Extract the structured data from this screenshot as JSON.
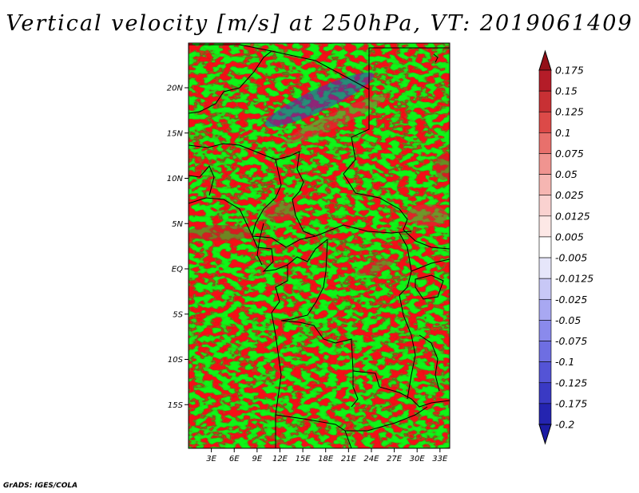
{
  "title": "Vertical velocity [m/s] at 250hPa, VT: 2019061409",
  "credit": "GrADS: IGES/COLA",
  "map": {
    "variable": "Vertical velocity",
    "units": "m/s",
    "level": "250hPa",
    "valid_time": "2019061409",
    "lat_range": [
      -20,
      25
    ],
    "lon_range": [
      0,
      35
    ],
    "y_axis_labels": [
      {
        "label": "20N",
        "lat": 20
      },
      {
        "label": "15N",
        "lat": 15
      },
      {
        "label": "10N",
        "lat": 10
      },
      {
        "label": "5N",
        "lat": 5
      },
      {
        "label": "EQ",
        "lat": 0
      },
      {
        "label": "5S",
        "lat": -5
      },
      {
        "label": "10S",
        "lat": -10
      },
      {
        "label": "15S",
        "lat": -15
      }
    ],
    "x_axis_labels": [
      {
        "label": "3E",
        "lon": 3
      },
      {
        "label": "6E",
        "lon": 6
      },
      {
        "label": "9E",
        "lon": 9
      },
      {
        "label": "12E",
        "lon": 12
      },
      {
        "label": "15E",
        "lon": 15
      },
      {
        "label": "18E",
        "lon": 18
      },
      {
        "label": "21E",
        "lon": 21
      },
      {
        "label": "24E",
        "lon": 24
      },
      {
        "label": "27E",
        "lon": 27
      },
      {
        "label": "30E",
        "lon": 30
      },
      {
        "label": "33E",
        "lon": 33
      }
    ]
  },
  "colorbar": {
    "levels": [
      {
        "label": "0.175",
        "color": "#a01020"
      },
      {
        "label": "0.15",
        "color": "#b41c28"
      },
      {
        "label": "0.125",
        "color": "#c83034"
      },
      {
        "label": "0.1",
        "color": "#dc4a48"
      },
      {
        "label": "0.075",
        "color": "#e8706c"
      },
      {
        "label": "0.05",
        "color": "#f09490"
      },
      {
        "label": "0.025",
        "color": "#f6b6b2"
      },
      {
        "label": "0.0125",
        "color": "#fad2d0"
      },
      {
        "label": "0.005",
        "color": "#fde8e6"
      },
      {
        "label": "-0.005",
        "color": "#ffffff"
      },
      {
        "label": "-0.0125",
        "color": "#e6e6fa"
      },
      {
        "label": "-0.025",
        "color": "#c8c8f6"
      },
      {
        "label": "-0.05",
        "color": "#a8a8f2"
      },
      {
        "label": "-0.075",
        "color": "#8a8aec"
      },
      {
        "label": "-0.1",
        "color": "#6e6ee2"
      },
      {
        "label": "-0.125",
        "color": "#5454d6"
      },
      {
        "label": "-0.175",
        "color": "#3a3ac4"
      },
      {
        "label": "-0.2",
        "color": "#2424b0"
      }
    ],
    "top_color": "#941018",
    "bottom_color": "#1c1ca4"
  }
}
